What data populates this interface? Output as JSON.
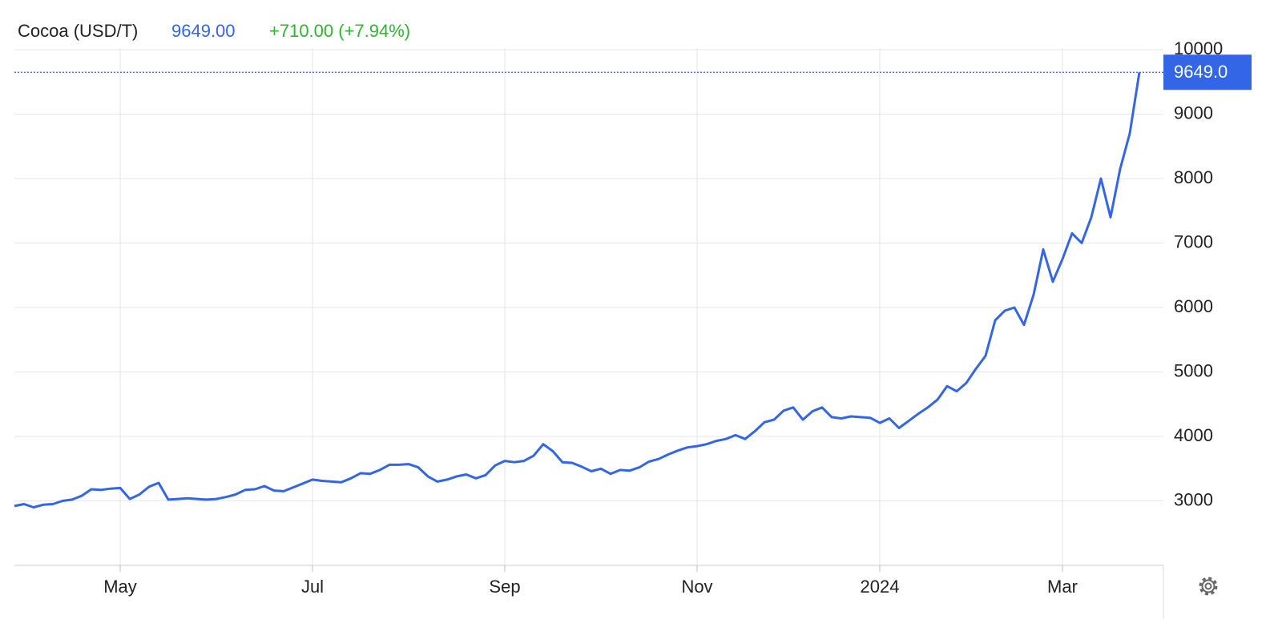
{
  "chart_data": {
    "type": "line",
    "title": "Cocoa (USD/T)",
    "price": "9649.00",
    "change": "+710.00 (+7.94%)",
    "last_value": {
      "value": 9649,
      "label": "9649.0"
    },
    "categories": [
      null,
      null,
      null,
      null,
      null,
      null,
      null,
      null,
      null,
      null,
      null,
      "May",
      null,
      null,
      null,
      null,
      null,
      null,
      null,
      null,
      null,
      null,
      null,
      null,
      null,
      null,
      null,
      null,
      null,
      null,
      null,
      "Jul",
      null,
      null,
      null,
      null,
      null,
      null,
      null,
      null,
      null,
      null,
      null,
      null,
      null,
      null,
      null,
      null,
      null,
      null,
      null,
      "Sep",
      null,
      null,
      null,
      null,
      null,
      null,
      null,
      null,
      null,
      null,
      null,
      null,
      null,
      null,
      null,
      null,
      null,
      null,
      null,
      "Nov",
      null,
      null,
      null,
      null,
      null,
      null,
      null,
      null,
      null,
      null,
      null,
      null,
      null,
      null,
      null,
      null,
      null,
      null,
      "2024",
      null,
      null,
      null,
      null,
      null,
      null,
      null,
      null,
      null,
      null,
      null,
      null,
      null,
      null,
      null,
      null,
      null,
      null,
      "Mar",
      null,
      null,
      null,
      null,
      null,
      null,
      null,
      null
    ],
    "series": [
      {
        "name": "Cocoa (USD/T)",
        "color": "#3366e6",
        "values": [
          2920,
          2950,
          2900,
          2940,
          2950,
          3000,
          3020,
          3080,
          3180,
          3170,
          3190,
          3200,
          3030,
          3100,
          3220,
          3280,
          3020,
          3030,
          3040,
          3030,
          3020,
          3030,
          3060,
          3100,
          3170,
          3180,
          3230,
          3160,
          3150,
          3210,
          3270,
          3330,
          3310,
          3300,
          3290,
          3350,
          3430,
          3420,
          3480,
          3560,
          3560,
          3570,
          3520,
          3380,
          3300,
          3330,
          3380,
          3410,
          3350,
          3400,
          3550,
          3620,
          3600,
          3620,
          3700,
          3880,
          3770,
          3600,
          3590,
          3530,
          3460,
          3500,
          3420,
          3480,
          3470,
          3520,
          3610,
          3650,
          3720,
          3780,
          3830,
          3850,
          3880,
          3930,
          3960,
          4020,
          3960,
          4080,
          4220,
          4260,
          4400,
          4450,
          4260,
          4390,
          4450,
          4300,
          4280,
          4310,
          4300,
          4290,
          4210,
          4280,
          4130,
          4240,
          4350,
          4450,
          4570,
          4780,
          4700,
          4830,
          5050,
          5250,
          5800,
          5950,
          6000,
          5730,
          6200,
          6900,
          6400,
          6750,
          7150,
          7000,
          7400,
          8000,
          7400,
          8150,
          8700,
          9649
        ]
      }
    ],
    "ylim": [
      2000,
      10000
    ],
    "yticks": [
      3000,
      4000,
      5000,
      6000,
      7000,
      8000,
      9000,
      10000
    ],
    "grid": true
  }
}
